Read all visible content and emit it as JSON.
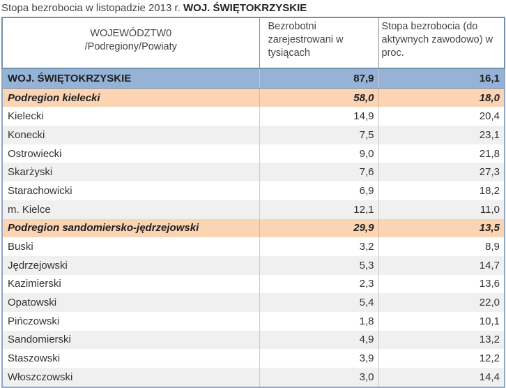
{
  "title": {
    "prefix": "Stopa bezrobocia w listopadzie 2013 r.",
    "bold": "WOJ. ŚWIĘTOKRZYSKIE"
  },
  "header": {
    "col1_line1": "WOJEWÓDZTW0",
    "col1_line2": "/Podregiony/Powiaty",
    "col2": "Bezrobotni zarejestrowani   w tysiącach",
    "col3": "Stopa bezrobocia  (do aktywnych zawodowo) w  proc."
  },
  "rows": [
    {
      "type": "voiv",
      "name": "WOJ. ŚWIĘTOKRZYSKIE",
      "unemployed": "87,9",
      "rate": "16,1"
    },
    {
      "type": "region",
      "name": "Podregion kielecki",
      "unemployed": "58,0",
      "rate": "18,0"
    },
    {
      "type": "powiat",
      "name": "Kielecki",
      "unemployed": "14,9",
      "rate": "20,4"
    },
    {
      "type": "powiat",
      "name": "Konecki",
      "unemployed": "7,5",
      "rate": "23,1"
    },
    {
      "type": "powiat",
      "name": "Ostrowiecki",
      "unemployed": "9,0",
      "rate": "21,8"
    },
    {
      "type": "powiat",
      "name": "Skarżyski",
      "unemployed": "7,6",
      "rate": "27,3"
    },
    {
      "type": "powiat",
      "name": "Starachowicki",
      "unemployed": "6,9",
      "rate": "18,2"
    },
    {
      "type": "powiat",
      "name": "m. Kielce",
      "unemployed": "12,1",
      "rate": "11,0"
    },
    {
      "type": "region",
      "name": "Podregion sandomiersko-jędrzejowski",
      "unemployed": "29,9",
      "rate": "13,5"
    },
    {
      "type": "powiat",
      "name": "Buski",
      "unemployed": "3,2",
      "rate": "8,9"
    },
    {
      "type": "powiat",
      "name": "Jędrzejowski",
      "unemployed": "5,3",
      "rate": "14,7"
    },
    {
      "type": "powiat",
      "name": "Kazimierski",
      "unemployed": "2,3",
      "rate": "13,6"
    },
    {
      "type": "powiat",
      "name": "Opatowski",
      "unemployed": "5,4",
      "rate": "22,0"
    },
    {
      "type": "powiat",
      "name": "Pińczowski",
      "unemployed": "1,8",
      "rate": "10,1"
    },
    {
      "type": "powiat",
      "name": "Sandomierski",
      "unemployed": "4,9",
      "rate": "13,2"
    },
    {
      "type": "powiat",
      "name": "Staszowski",
      "unemployed": "3,9",
      "rate": "12,2"
    },
    {
      "type": "powiat",
      "name": "Włoszczowski",
      "unemployed": "3,0",
      "rate": "14,4"
    }
  ]
}
